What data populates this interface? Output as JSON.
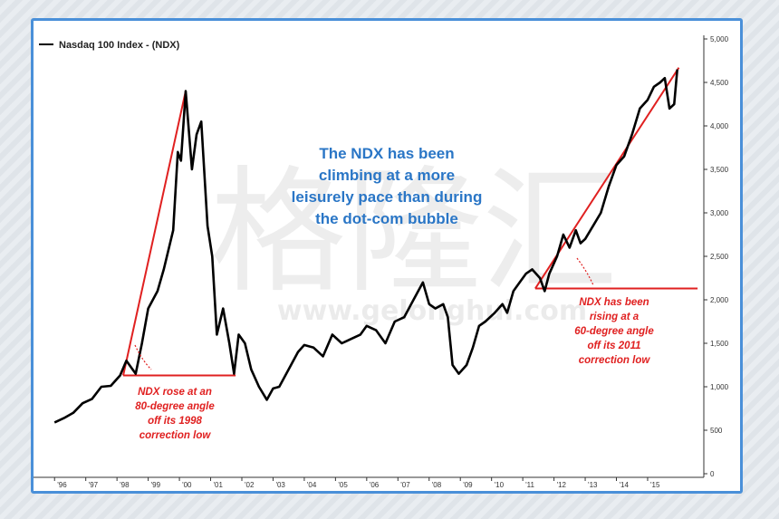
{
  "chart_data": {
    "type": "line",
    "title": "",
    "xlabel": "",
    "ylabel": "",
    "ylim": [
      0,
      5000
    ],
    "y_ticks": [
      "0",
      "500",
      "1,000",
      "1,500",
      "2,000",
      "2,500",
      "3,000",
      "3,500",
      "4,000",
      "4,500",
      "5,000"
    ],
    "x_ticks": [
      "'96",
      "'97",
      "'98",
      "'99",
      "'00",
      "'01",
      "'02",
      "'03",
      "'04",
      "'05",
      "'06",
      "'07",
      "'08",
      "'09",
      "'10",
      "'11",
      "'12",
      "'13",
      "'14",
      "'15"
    ],
    "grid": false,
    "legend": "top-left",
    "series": [
      {
        "name": "Nasdaq 100 Index - (NDX)",
        "color": "#000000",
        "points": [
          [
            1996.0,
            590
          ],
          [
            1996.3,
            640
          ],
          [
            1996.6,
            700
          ],
          [
            1996.9,
            810
          ],
          [
            1997.2,
            860
          ],
          [
            1997.5,
            1000
          ],
          [
            1997.8,
            1010
          ],
          [
            1998.1,
            1130
          ],
          [
            1998.3,
            1300
          ],
          [
            1998.6,
            1150
          ],
          [
            1998.8,
            1500
          ],
          [
            1999.0,
            1900
          ],
          [
            1999.3,
            2100
          ],
          [
            1999.5,
            2350
          ],
          [
            1999.8,
            2800
          ],
          [
            1999.95,
            3700
          ],
          [
            2000.05,
            3600
          ],
          [
            2000.2,
            4400
          ],
          [
            2000.4,
            3500
          ],
          [
            2000.55,
            3900
          ],
          [
            2000.7,
            4050
          ],
          [
            2000.9,
            2850
          ],
          [
            2001.05,
            2500
          ],
          [
            2001.2,
            1600
          ],
          [
            2001.4,
            1900
          ],
          [
            2001.6,
            1500
          ],
          [
            2001.75,
            1150
          ],
          [
            2001.9,
            1600
          ],
          [
            2002.1,
            1500
          ],
          [
            2002.3,
            1200
          ],
          [
            2002.55,
            1000
          ],
          [
            2002.8,
            850
          ],
          [
            2003.0,
            980
          ],
          [
            2003.2,
            1000
          ],
          [
            2003.5,
            1200
          ],
          [
            2003.8,
            1400
          ],
          [
            2004.0,
            1480
          ],
          [
            2004.3,
            1450
          ],
          [
            2004.6,
            1350
          ],
          [
            2004.9,
            1600
          ],
          [
            2005.2,
            1500
          ],
          [
            2005.5,
            1550
          ],
          [
            2005.8,
            1600
          ],
          [
            2006.0,
            1700
          ],
          [
            2006.3,
            1650
          ],
          [
            2006.6,
            1500
          ],
          [
            2006.9,
            1750
          ],
          [
            2007.2,
            1800
          ],
          [
            2007.5,
            2000
          ],
          [
            2007.8,
            2200
          ],
          [
            2008.0,
            1950
          ],
          [
            2008.2,
            1900
          ],
          [
            2008.45,
            1950
          ],
          [
            2008.6,
            1800
          ],
          [
            2008.75,
            1250
          ],
          [
            2008.95,
            1150
          ],
          [
            2009.2,
            1250
          ],
          [
            2009.4,
            1450
          ],
          [
            2009.6,
            1700
          ],
          [
            2009.8,
            1750
          ],
          [
            2010.1,
            1850
          ],
          [
            2010.35,
            1950
          ],
          [
            2010.5,
            1850
          ],
          [
            2010.7,
            2100
          ],
          [
            2010.9,
            2200
          ],
          [
            2011.1,
            2300
          ],
          [
            2011.3,
            2350
          ],
          [
            2011.55,
            2250
          ],
          [
            2011.7,
            2100
          ],
          [
            2011.85,
            2300
          ],
          [
            2012.1,
            2500
          ],
          [
            2012.3,
            2750
          ],
          [
            2012.5,
            2600
          ],
          [
            2012.7,
            2800
          ],
          [
            2012.85,
            2650
          ],
          [
            2013.0,
            2700
          ],
          [
            2013.25,
            2850
          ],
          [
            2013.5,
            3000
          ],
          [
            2013.75,
            3300
          ],
          [
            2014.0,
            3550
          ],
          [
            2014.25,
            3650
          ],
          [
            2014.5,
            3900
          ],
          [
            2014.75,
            4200
          ],
          [
            2015.0,
            4300
          ],
          [
            2015.2,
            4450
          ],
          [
            2015.4,
            4500
          ],
          [
            2015.55,
            4550
          ],
          [
            2015.7,
            4200
          ],
          [
            2015.85,
            4250
          ],
          [
            2015.95,
            4650
          ]
        ]
      }
    ],
    "trend_lines": [
      {
        "from": [
          1998.2,
          1130
        ],
        "to": [
          2000.2,
          4400
        ],
        "color": "#e02020"
      },
      {
        "from": [
          1998.2,
          1130
        ],
        "to": [
          2001.8,
          1130
        ],
        "color": "#e02020"
      },
      {
        "from": [
          2011.4,
          2130
        ],
        "to": [
          2016.0,
          4670
        ],
        "color": "#e02020"
      },
      {
        "from": [
          2011.4,
          2130
        ],
        "to": [
          2016.6,
          2130
        ],
        "color": "#e02020"
      }
    ],
    "annotations": {
      "headline_lines": [
        "The NDX has been",
        "climbing at a more",
        "leisurely pace than during",
        "the dot-com bubble"
      ],
      "headline_color": "#2a76c6",
      "left_note_lines": [
        "NDX rose at an",
        "80-degree angle",
        "off its 1998",
        "correction low"
      ],
      "right_note_lines": [
        "NDX has been",
        "rising at a",
        "60-degree angle",
        "off its 2011",
        "correction low"
      ],
      "note_color": "#e02020"
    },
    "watermark": {
      "glyphs": "格隆汇",
      "url": "www.gelonghui.com"
    }
  }
}
